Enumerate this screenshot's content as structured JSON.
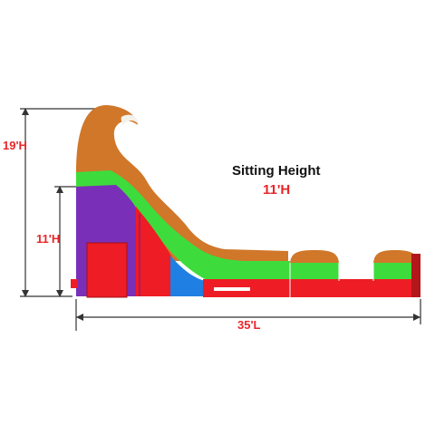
{
  "dimensions": {
    "overall_height": "19'H",
    "slide_height": "11'H",
    "length": "35'L"
  },
  "callout": {
    "title": "Sitting Height",
    "value": "11'H"
  },
  "colors": {
    "orange": "#d0772a",
    "green": "#3ddc3c",
    "purple": "#7a2fb8",
    "red": "#ee1c24",
    "blue": "#1f7fe3",
    "dark": "#9b0f0f"
  }
}
